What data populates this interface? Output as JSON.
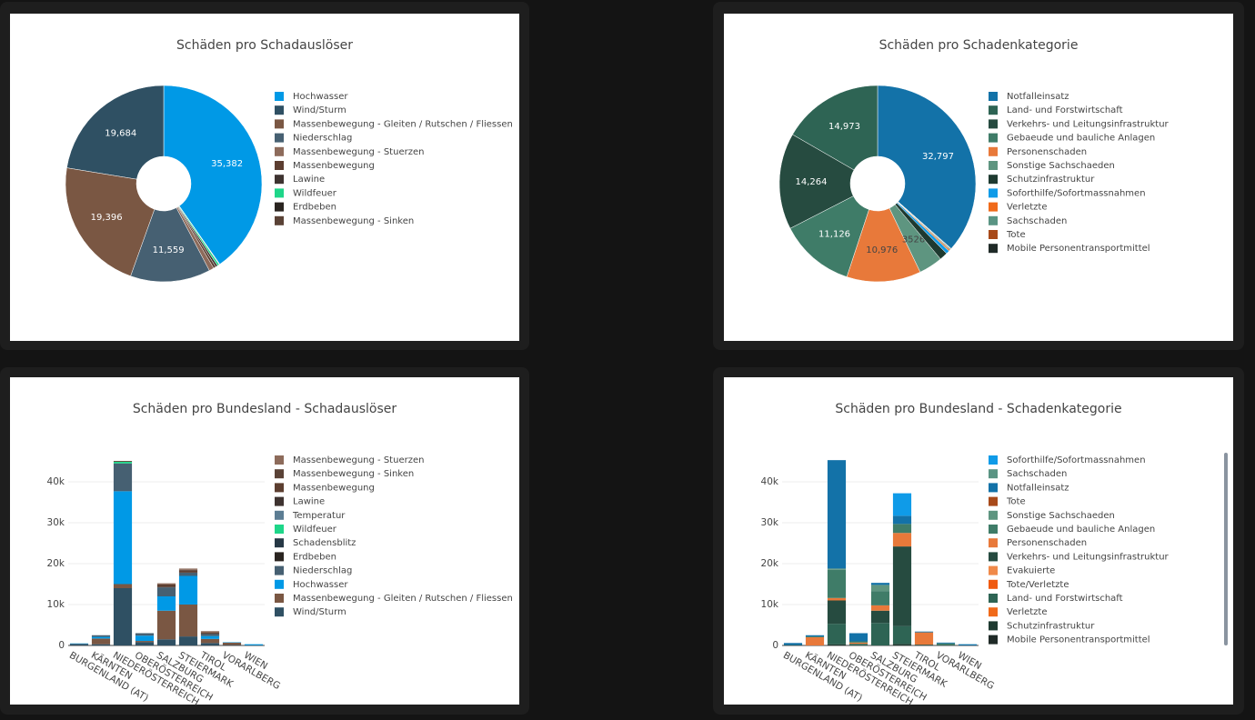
{
  "chart_data": [
    {
      "type": "pie",
      "title": "Schäden pro Schadauslöser",
      "categories": [
        "Hochwasser",
        "Wind/Sturm",
        "Massenbewegung - Gleiten / Rutschen / Fliessen",
        "Niederschlag",
        "Massenbewegung - Stuerzen",
        "Massenbewegung",
        "Lawine",
        "Wildfeuer",
        "Erdbeben",
        "Massenbewegung - Sinken"
      ],
      "values": [
        35382,
        19684,
        19396,
        11559,
        700,
        350,
        300,
        280,
        60,
        40
      ],
      "value_labels": [
        "35,382",
        "19,684",
        "19,396",
        "11,559",
        null,
        null,
        null,
        null,
        null,
        null
      ],
      "colors": [
        "#0099e6",
        "#2f5063",
        "#7a5743",
        "#466072",
        "#8d6b5b",
        "#5c3e30",
        "#3e3330",
        "#1ed689",
        "#2a2420",
        "#5a4236"
      ]
    },
    {
      "type": "pie",
      "title": "Schäden pro Schadenkategorie",
      "categories": [
        "Notfalleinsatz",
        "Land- und Forstwirtschaft",
        "Verkehrs- und Leitungsinfrastruktur",
        "Gebaeude und bauliche Anlagen",
        "Personenschaden",
        "Sonstige Sachschaeden",
        "Schutzinfrastruktur",
        "Soforthilfe/Sofortmassnahmen",
        "Verletzte",
        "Sachschaden",
        "Tote",
        "Mobile Personentransportmittel"
      ],
      "values": [
        32797,
        14973,
        14264,
        11126,
        10976,
        3526,
        1200,
        500,
        200,
        150,
        80,
        40
      ],
      "value_labels": [
        "32,797",
        "14,973",
        "14,264",
        "11,126",
        "10,976",
        "3526",
        null,
        null,
        null,
        null,
        null,
        null
      ],
      "colors": [
        "#1372a8",
        "#2e6454",
        "#264b40",
        "#3f7c68",
        "#e8793a",
        "#5e9580",
        "#1e3a30",
        "#0f9be8",
        "#f06a1a",
        "#5a9483",
        "#a84a1a",
        "#1f2a27"
      ]
    },
    {
      "type": "bar",
      "title": "Schäden pro Bundesland - Schadauslöser",
      "categories": [
        "BURGENLAND (AT)",
        "KÄRNTEN",
        "NIEDERÖSTERREICH",
        "OBERÖSTERREICH",
        "SALZBURG",
        "STEIERMARK",
        "TIROL",
        "VORARLBERG",
        "WIEN"
      ],
      "ylim": [
        0,
        47000
      ],
      "yticks": [
        0,
        {
          "value": 10000,
          "label": "10k"
        },
        {
          "value": 20000,
          "label": "20k"
        },
        {
          "value": 30000,
          "label": "30k"
        },
        {
          "value": 40000,
          "label": "40k"
        }
      ],
      "grid": true,
      "series": [
        {
          "name": "Massenbewegung - Stuerzen",
          "color": "#8d6b5b",
          "values": [
            0,
            0,
            0,
            0,
            300,
            300,
            300,
            0,
            0
          ]
        },
        {
          "name": "Massenbewegung - Sinken",
          "color": "#5a4236",
          "values": [
            0,
            0,
            0,
            0,
            0,
            200,
            0,
            0,
            0
          ]
        },
        {
          "name": "Massenbewegung",
          "color": "#5c3e30",
          "values": [
            0,
            0,
            200,
            0,
            600,
            500,
            300,
            0,
            0
          ]
        },
        {
          "name": "Lawine",
          "color": "#3e3330",
          "values": [
            0,
            0,
            0,
            0,
            100,
            0,
            100,
            0,
            0
          ]
        },
        {
          "name": "Temperatur",
          "color": "#5c7d93",
          "values": [
            0,
            0,
            0,
            0,
            0,
            0,
            0,
            0,
            0
          ]
        },
        {
          "name": "Wildfeuer",
          "color": "#1ed689",
          "values": [
            0,
            0,
            400,
            0,
            0,
            0,
            0,
            0,
            0
          ]
        },
        {
          "name": "Schadensblitz",
          "color": "#263845",
          "values": [
            0,
            0,
            0,
            0,
            0,
            0,
            0,
            0,
            0
          ]
        },
        {
          "name": "Erdbeben",
          "color": "#2a2420",
          "values": [
            0,
            0,
            0,
            0,
            0,
            0,
            0,
            0,
            0
          ]
        },
        {
          "name": "Niederschlag",
          "color": "#466072",
          "values": [
            0,
            400,
            6800,
            600,
            2200,
            800,
            500,
            0,
            0
          ]
        },
        {
          "name": "Hochwasser",
          "color": "#0099e6",
          "values": [
            100,
            400,
            22700,
            1300,
            3500,
            7000,
            700,
            100,
            250
          ]
        },
        {
          "name": "Massenbewegung - Gleiten / Rutschen / Fliessen",
          "color": "#7a5743",
          "values": [
            0,
            1400,
            1000,
            300,
            7000,
            7800,
            1000,
            600,
            0
          ]
        },
        {
          "name": "Wind/Sturm",
          "color": "#2f5063",
          "values": [
            400,
            300,
            14000,
            800,
            1500,
            2200,
            600,
            100,
            50
          ]
        }
      ]
    },
    {
      "type": "bar",
      "title": "Schäden pro Bundesland - Schadenkategorie",
      "categories": [
        "BURGENLAND (AT)",
        "KÄRNTEN",
        "NIEDERÖSTERREICH",
        "OBERÖSTERREICH",
        "SALZBURG",
        "STEIERMARK",
        "TIROL",
        "VORARLBERG",
        "WIEN"
      ],
      "ylim": [
        0,
        47000
      ],
      "yticks": [
        0,
        {
          "value": 10000,
          "label": "10k"
        },
        {
          "value": 20000,
          "label": "20k"
        },
        {
          "value": 30000,
          "label": "30k"
        },
        {
          "value": 40000,
          "label": "40k"
        }
      ],
      "grid": true,
      "series": [
        {
          "name": "Soforthilfe/Sofortmassnahmen",
          "color": "#0f9be8",
          "values": [
            0,
            0,
            0,
            0,
            0,
            5500,
            0,
            0,
            0
          ]
        },
        {
          "name": "Sachschaden",
          "color": "#5a9483",
          "values": [
            0,
            0,
            0,
            0,
            0,
            0,
            0,
            0,
            0
          ]
        },
        {
          "name": "Notfalleinsatz",
          "color": "#1372a8",
          "values": [
            500,
            300,
            26500,
            2000,
            500,
            2000,
            200,
            200,
            300
          ]
        },
        {
          "name": "Tote",
          "color": "#a84a1a",
          "values": [
            0,
            0,
            0,
            0,
            0,
            0,
            0,
            0,
            0
          ]
        },
        {
          "name": "Sonstige Sachschaeden",
          "color": "#5e9580",
          "values": [
            0,
            0,
            300,
            0,
            1500,
            0,
            0,
            0,
            0
          ]
        },
        {
          "name": "Gebaeude und bauliche Anlagen",
          "color": "#3f7c68",
          "values": [
            0,
            200,
            6900,
            300,
            3500,
            2200,
            0,
            300,
            0
          ]
        },
        {
          "name": "Personenschaden",
          "color": "#e8793a",
          "values": [
            0,
            2000,
            600,
            300,
            1300,
            3300,
            3000,
            0,
            0
          ]
        },
        {
          "name": "Verkehrs- und Leitungsinfrastruktur",
          "color": "#264b40",
          "values": [
            0,
            0,
            5700,
            0,
            3000,
            19500,
            200,
            0,
            0
          ]
        },
        {
          "name": "Evakuierte",
          "color": "#f08a4a",
          "values": [
            0,
            0,
            0,
            0,
            0,
            0,
            0,
            0,
            0
          ]
        },
        {
          "name": "Tote/Verletzte",
          "color": "#f05a10",
          "values": [
            0,
            0,
            0,
            0,
            0,
            0,
            0,
            0,
            0
          ]
        },
        {
          "name": "Land- und Forstwirtschaft",
          "color": "#2e6454",
          "values": [
            100,
            0,
            5000,
            400,
            5500,
            4300,
            0,
            200,
            0
          ]
        },
        {
          "name": "Verletzte",
          "color": "#f06a1a",
          "values": [
            0,
            0,
            0,
            0,
            0,
            0,
            0,
            0,
            0
          ]
        },
        {
          "name": "Schutzinfrastruktur",
          "color": "#1e3a30",
          "values": [
            0,
            0,
            300,
            0,
            0,
            400,
            0,
            0,
            0
          ]
        },
        {
          "name": "Mobile Personentransportmittel",
          "color": "#1f2a27",
          "values": [
            0,
            0,
            0,
            0,
            0,
            0,
            0,
            0,
            0
          ]
        }
      ]
    }
  ]
}
